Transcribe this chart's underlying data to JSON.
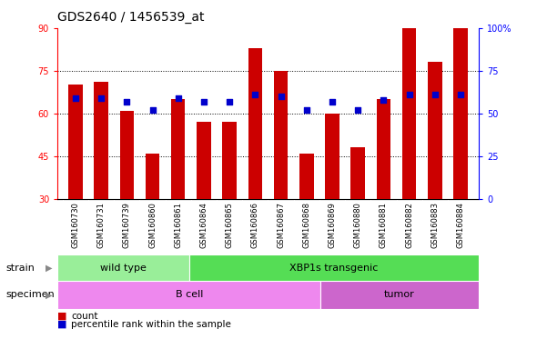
{
  "title": "GDS2640 / 1456539_at",
  "samples": [
    "GSM160730",
    "GSM160731",
    "GSM160739",
    "GSM160860",
    "GSM160861",
    "GSM160864",
    "GSM160865",
    "GSM160866",
    "GSM160867",
    "GSM160868",
    "GSM160869",
    "GSM160880",
    "GSM160881",
    "GSM160882",
    "GSM160883",
    "GSM160884"
  ],
  "counts": [
    70,
    71,
    61,
    46,
    65,
    57,
    57,
    83,
    75,
    46,
    60,
    48,
    65,
    90,
    78,
    91
  ],
  "percentiles": [
    59,
    59,
    57,
    52,
    59,
    57,
    57,
    61,
    60,
    52,
    57,
    52,
    58,
    61,
    61,
    61
  ],
  "ymin": 30,
  "ymax": 90,
  "yticks": [
    30,
    45,
    60,
    75,
    90
  ],
  "y2ticks": [
    0,
    25,
    50,
    75,
    100
  ],
  "bar_color": "#cc0000",
  "dot_color": "#0000cc",
  "strain_groups": [
    {
      "label": "wild type",
      "start": 0,
      "end": 5,
      "color": "#99ee99"
    },
    {
      "label": "XBP1s transgenic",
      "start": 5,
      "end": 16,
      "color": "#55dd55"
    }
  ],
  "specimen_groups": [
    {
      "label": "B cell",
      "start": 0,
      "end": 10,
      "color": "#ee88ee"
    },
    {
      "label": "tumor",
      "start": 10,
      "end": 16,
      "color": "#cc66cc"
    }
  ],
  "bar_width": 0.55,
  "tick_fontsize": 7,
  "label_fontsize": 8,
  "title_fontsize": 10,
  "xtick_bg": "#cccccc"
}
